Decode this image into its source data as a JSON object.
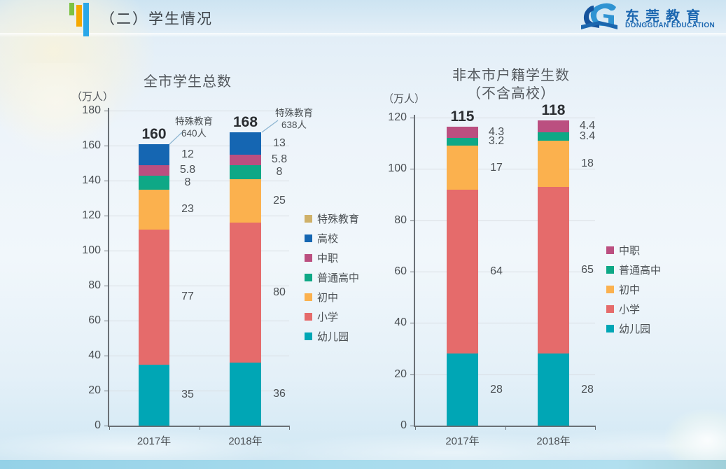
{
  "slide": {
    "header": {
      "title": "（二）学生情况"
    },
    "logo": {
      "cn": "东莞教育",
      "en": "DONGGUAN EDUCATION"
    },
    "theme": {
      "header_bar_green": "#7cc242",
      "header_bar_yellow": "#f5a800",
      "header_bar_blue": "#2aa7e8",
      "logo_blue": "#1c67b0",
      "bottom_strip_blue": "#a5d9eb"
    }
  },
  "chart_data": [
    {
      "type": "bar",
      "stacked": true,
      "title": "全市学生总数",
      "unit": "（万人）",
      "categories": [
        "2017年",
        "2018年"
      ],
      "series": [
        {
          "name": "幼儿园",
          "color": "#00a6b5",
          "values": [
            35,
            36
          ]
        },
        {
          "name": "小学",
          "color": "#e56b6b",
          "values": [
            77,
            80
          ]
        },
        {
          "name": "初中",
          "color": "#fbb14e",
          "values": [
            23,
            25
          ]
        },
        {
          "name": "普通高中",
          "color": "#0ea886",
          "values": [
            8,
            8
          ]
        },
        {
          "name": "中职",
          "color": "#bb4f80",
          "values": [
            5.8,
            5.8
          ]
        },
        {
          "name": "高校",
          "color": "#1566b2",
          "values": [
            12,
            13
          ]
        }
      ],
      "totals": [
        "160",
        "168"
      ],
      "callouts": [
        {
          "line1": "特殊教育",
          "line2": "640人"
        },
        {
          "line1": "特殊教育",
          "line2": "638人"
        }
      ],
      "legend": [
        {
          "label": "特殊教育",
          "color": "#cfb169"
        },
        {
          "label": "高校",
          "color": "#1566b2"
        },
        {
          "label": "中职",
          "color": "#bb4f80"
        },
        {
          "label": "普通高中",
          "color": "#0ea886"
        },
        {
          "label": "初中",
          "color": "#fbb14e"
        },
        {
          "label": "小学",
          "color": "#e56b6b"
        },
        {
          "label": "幼儿园",
          "color": "#00a6b5"
        }
      ],
      "ylim": [
        0,
        180
      ],
      "ytick_step": 20,
      "grid": true,
      "legend_position": "right"
    },
    {
      "type": "bar",
      "stacked": true,
      "title": "非本市户籍学生数",
      "subtitle": "（不含高校）",
      "unit": "（万人）",
      "categories": [
        "2017年",
        "2018年"
      ],
      "series": [
        {
          "name": "幼儿园",
          "color": "#00a6b5",
          "values": [
            28,
            28
          ]
        },
        {
          "name": "小学",
          "color": "#e56b6b",
          "values": [
            64,
            65
          ]
        },
        {
          "name": "初中",
          "color": "#fbb14e",
          "values": [
            17,
            18
          ]
        },
        {
          "name": "普通高中",
          "color": "#0ea886",
          "values": [
            3.2,
            3.4
          ]
        },
        {
          "name": "中职",
          "color": "#bb4f80",
          "values": [
            4.3,
            4.4
          ]
        }
      ],
      "totals": [
        "115",
        "118"
      ],
      "legend": [
        {
          "label": "中职",
          "color": "#bb4f80"
        },
        {
          "label": "普通高中",
          "color": "#0ea886"
        },
        {
          "label": "初中",
          "color": "#fbb14e"
        },
        {
          "label": "小学",
          "color": "#e56b6b"
        },
        {
          "label": "幼儿园",
          "color": "#00a6b5"
        }
      ],
      "ylim": [
        0,
        120
      ],
      "ytick_step": 20,
      "grid": true,
      "legend_position": "right"
    }
  ]
}
